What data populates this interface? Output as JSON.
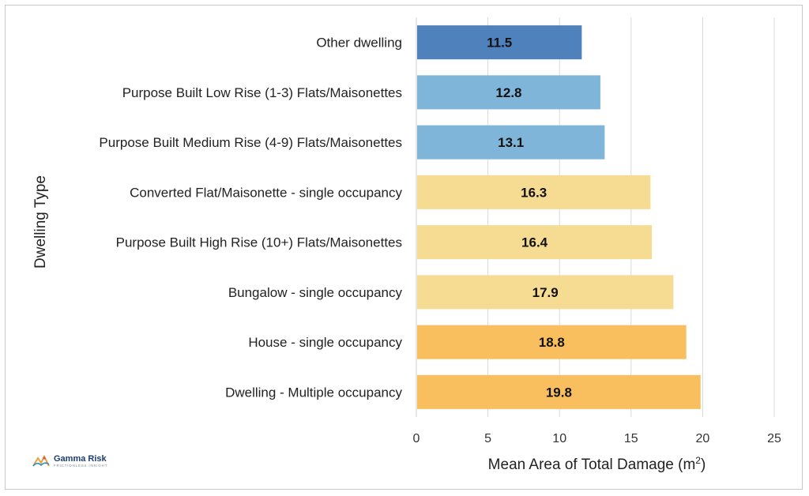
{
  "chart_data": {
    "type": "bar",
    "orientation": "horizontal",
    "title": "",
    "xlabel": "Mean Area of Total Damage (m",
    "xlabel_superscript": "2",
    "xlabel_suffix": ")",
    "ylabel": "Dwelling Type",
    "xlim": [
      0,
      25
    ],
    "xticks": [
      "0",
      "5",
      "10",
      "15",
      "20",
      "25"
    ],
    "grid": true,
    "categories": [
      "Other dwelling",
      "Purpose Built Low Rise (1-3) Flats/Maisonettes",
      "Purpose Built Medium Rise (4-9) Flats/Maisonettes",
      "Converted Flat/Maisonette - single occupancy",
      "Purpose Built High Rise (10+) Flats/Maisonettes",
      "Bungalow - single occupancy",
      "House - single occupancy",
      "Dwelling - Multiple occupancy"
    ],
    "values": [
      11.5,
      12.8,
      13.1,
      16.3,
      16.4,
      17.9,
      18.8,
      19.8
    ],
    "value_labels": [
      "11.5",
      "12.8",
      "13.1",
      "16.3",
      "16.4",
      "17.9",
      "18.8",
      "19.8"
    ],
    "bar_colors": [
      "#4f81bd",
      "#7fb5d8",
      "#7fb5d8",
      "#f5dc92",
      "#f5dc92",
      "#f5dc92",
      "#f9bf5e",
      "#f9bf5e"
    ]
  },
  "logo": {
    "name": "Gamma Risk",
    "tagline": "FRICTIONLESS INSIGHT"
  }
}
